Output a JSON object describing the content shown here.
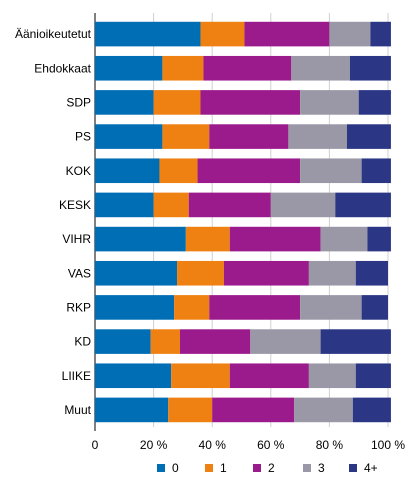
{
  "chart_data": {
    "type": "bar",
    "orientation": "horizontal",
    "stacked": true,
    "percent": true,
    "categories": [
      "Äänioikeutetut",
      "Ehdokkaat",
      "SDP",
      "PS",
      "KOK",
      "KESK",
      "VIHR",
      "VAS",
      "RKP",
      "KD",
      "LIIKE",
      "Muut"
    ],
    "series": [
      {
        "name": "0",
        "color": "#006eb4",
        "values": [
          36,
          23,
          20,
          23,
          22,
          20,
          31,
          28,
          27,
          19,
          26,
          25
        ]
      },
      {
        "name": "1",
        "color": "#ee8112",
        "values": [
          15,
          14,
          16,
          16,
          13,
          12,
          15,
          16,
          12,
          10,
          20,
          15
        ]
      },
      {
        "name": "2",
        "color": "#9c1b8c",
        "values": [
          29,
          30,
          34,
          27,
          35,
          28,
          31,
          29,
          31,
          24,
          27,
          28
        ]
      },
      {
        "name": "3",
        "color": "#9a98a6",
        "values": [
          14,
          20,
          20,
          20,
          21,
          22,
          16,
          16,
          21,
          24,
          16,
          20
        ]
      },
      {
        "name": "4+",
        "color": "#2b3685",
        "values": [
          7,
          14,
          11,
          15,
          10,
          19,
          8,
          11,
          9,
          24,
          12,
          13
        ]
      }
    ],
    "xlim": [
      0,
      100
    ],
    "x_ticks": [
      "0",
      "20 %",
      "40 %",
      "60 %",
      "80 %",
      "100 %"
    ],
    "grid": "vertical",
    "legend": "bottom"
  }
}
